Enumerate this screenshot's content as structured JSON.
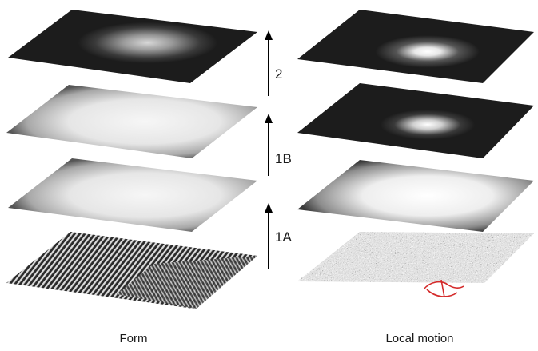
{
  "columns": [
    {
      "label": "Form"
    },
    {
      "label": "Local motion"
    }
  ],
  "stages": [
    {
      "label": "2"
    },
    {
      "label": "1B"
    },
    {
      "label": "1A"
    }
  ],
  "colors": {
    "dark_layer": "#1c1c1c",
    "bright_layer": "#e6e6e6",
    "glow": "#ffffff",
    "arrow": "#000000",
    "annotation": "#d42a2a"
  },
  "icons": {
    "stage_arrow": "up-arrow-icon"
  }
}
